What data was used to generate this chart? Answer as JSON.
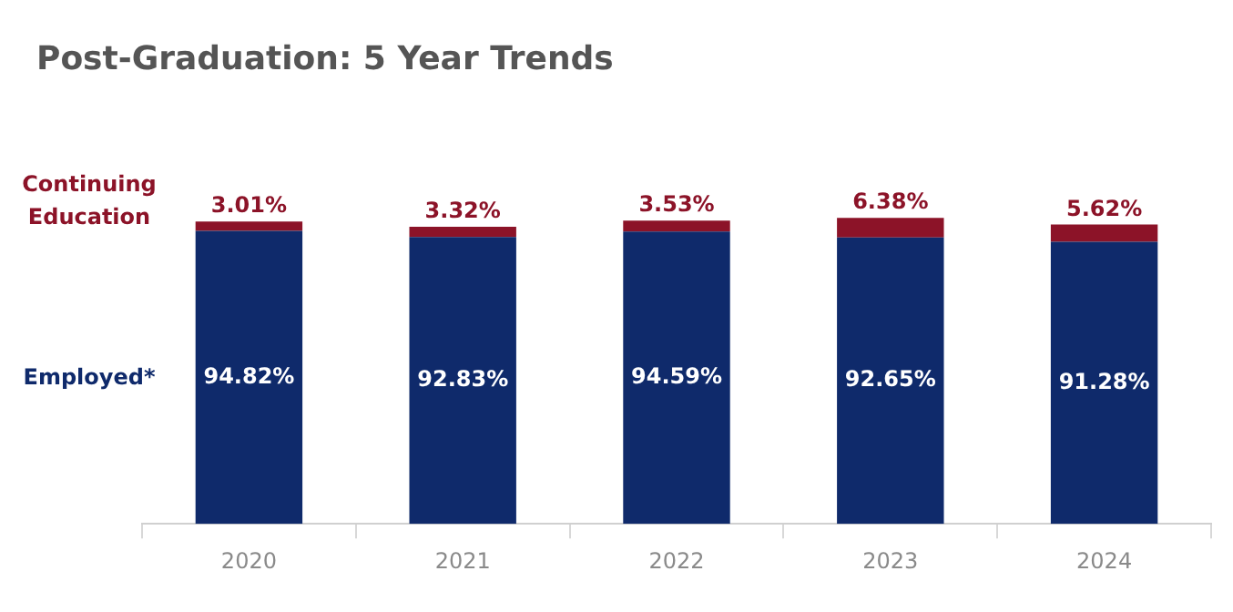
{
  "chart_data": {
    "type": "bar",
    "title": "Post-Graduation: 5 Year Trends",
    "categories": [
      "2020",
      "2021",
      "2022",
      "2023",
      "2024"
    ],
    "stacked": true,
    "legend": "left",
    "grid": false,
    "series": [
      {
        "name": "Employed*",
        "color": "#0f2a6b",
        "values": [
          94.82,
          92.83,
          94.59,
          92.65,
          91.28
        ],
        "value_labels": [
          "94.82%",
          "92.83%",
          "94.59%",
          "92.65%",
          "91.28%"
        ]
      },
      {
        "name": "Continuing Education",
        "color": "#8c1328",
        "values": [
          3.01,
          3.32,
          3.53,
          6.38,
          5.62
        ],
        "value_labels": [
          "3.01%",
          "3.32%",
          "3.53%",
          "6.38%",
          "5.62%"
        ]
      }
    ]
  }
}
